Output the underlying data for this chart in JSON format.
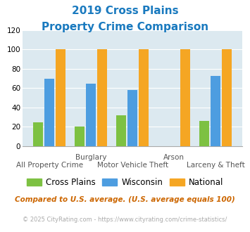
{
  "title_line1": "2019 Cross Plains",
  "title_line2": "Property Crime Comparison",
  "title_color": "#1a7abf",
  "cross_plains": [
    25,
    20,
    32,
    0,
    26
  ],
  "wisconsin": [
    70,
    65,
    58,
    0,
    73
  ],
  "national": [
    100,
    100,
    100,
    100,
    100
  ],
  "bar_colors": {
    "cross_plains": "#7dc142",
    "wisconsin": "#4d9de0",
    "national": "#f5a623"
  },
  "ylim": [
    0,
    120
  ],
  "yticks": [
    0,
    20,
    40,
    60,
    80,
    100,
    120
  ],
  "plot_bg": "#dce9f0",
  "grid_color": "#b8cdd8",
  "top_labels": {
    "1": "Burglary",
    "3": "Arson"
  },
  "bottom_labels": {
    "0": "All Property Crime",
    "2": "Motor Vehicle Theft",
    "4": "Larceny & Theft"
  },
  "footnote1": "Compared to U.S. average. (U.S. average equals 100)",
  "footnote2": "© 2025 CityRating.com - https://www.cityrating.com/crime-statistics/",
  "footnote1_color": "#cc6600",
  "footnote2_color": "#aaaaaa",
  "footnote2_url_color": "#4d9de0"
}
